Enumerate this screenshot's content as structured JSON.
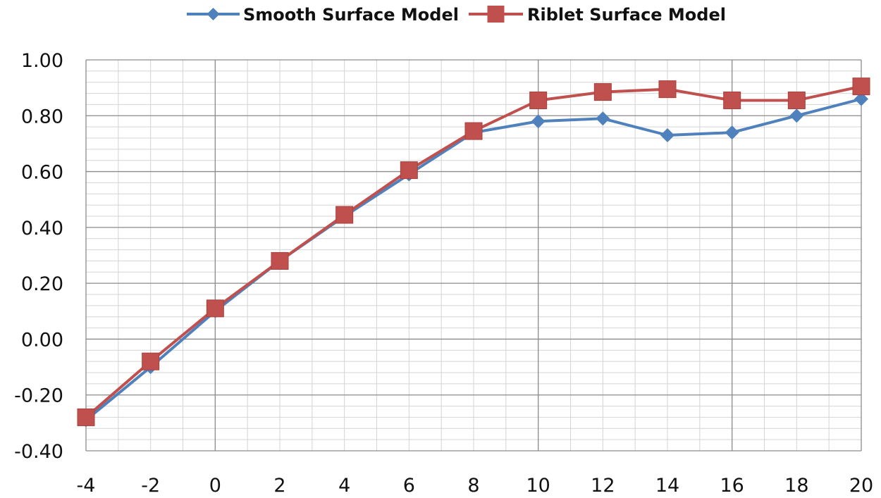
{
  "chart_data": {
    "type": "line",
    "title": "",
    "xlabel": "",
    "ylabel": "",
    "x": [
      -4,
      -2,
      0,
      2,
      4,
      6,
      8,
      10,
      12,
      14,
      16,
      18,
      20
    ],
    "x_tick_labels": [
      "-4",
      "-2",
      "0",
      "2",
      "4",
      "6",
      "8",
      "10",
      "12",
      "14",
      "16",
      "18",
      "20"
    ],
    "y_tick_labels": [
      "1.00",
      "0.80",
      "0.60",
      "0.40",
      "0.20",
      "0.00",
      "-0.20",
      "-0.40"
    ],
    "y_ticks": [
      1.0,
      0.8,
      0.6,
      0.4,
      0.2,
      0.0,
      -0.2,
      -0.4
    ],
    "xlim": [
      -4,
      20
    ],
    "ylim": [
      -0.4,
      1.0
    ],
    "grid": true,
    "legend_position": "top-center",
    "series": [
      {
        "name": "Smooth Surface Model",
        "color": "#4F81BD",
        "marker": "diamond",
        "values": [
          -0.29,
          -0.1,
          0.1,
          0.28,
          0.44,
          0.59,
          0.74,
          0.78,
          0.79,
          0.73,
          0.74,
          0.8,
          0.86
        ]
      },
      {
        "name": "Riblet Surface Model",
        "color": "#C0504D",
        "marker": "square",
        "values": [
          -0.28,
          -0.08,
          0.11,
          0.28,
          0.445,
          0.605,
          0.745,
          0.855,
          0.885,
          0.895,
          0.855,
          0.855,
          0.905
        ]
      }
    ]
  }
}
